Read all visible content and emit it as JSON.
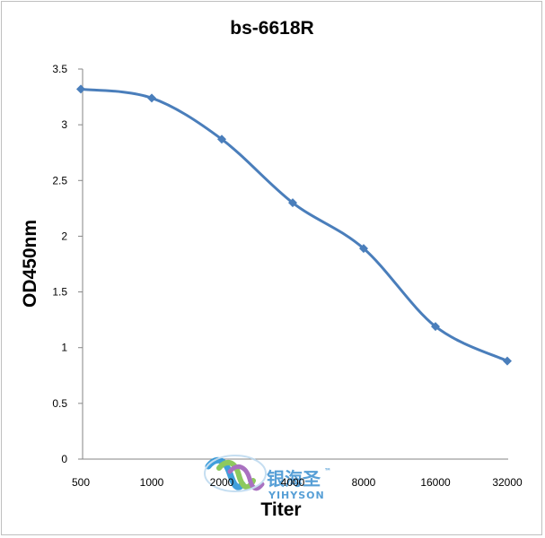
{
  "chart_data": {
    "type": "line",
    "title": "bs-6618R",
    "xlabel": "Titer",
    "ylabel": "OD450nm",
    "categories": [
      "500",
      "1000",
      "2000",
      "4000",
      "8000",
      "16000",
      "32000"
    ],
    "series": [
      {
        "values": [
          3.32,
          3.24,
          2.87,
          2.3,
          1.89,
          1.19,
          0.88
        ],
        "color": "#4A7EBB",
        "marker": "diamond",
        "smooth": true
      }
    ],
    "ylim": [
      0,
      3.5
    ],
    "yticks": [
      "0",
      "0.5",
      "1",
      "1.5",
      "2",
      "2.5",
      "3",
      "3.5"
    ],
    "grid": false,
    "legend": "none"
  },
  "watermark": {
    "cn": "银海圣",
    "tm": "™",
    "en": "YIHYSON",
    "colors": {
      "cn": "#3a8fd0",
      "en": "#3a8fd0",
      "wave_blue": "#1f8fd6",
      "wave_green": "#7ac043",
      "wave_purple": "#9b59b6"
    }
  }
}
